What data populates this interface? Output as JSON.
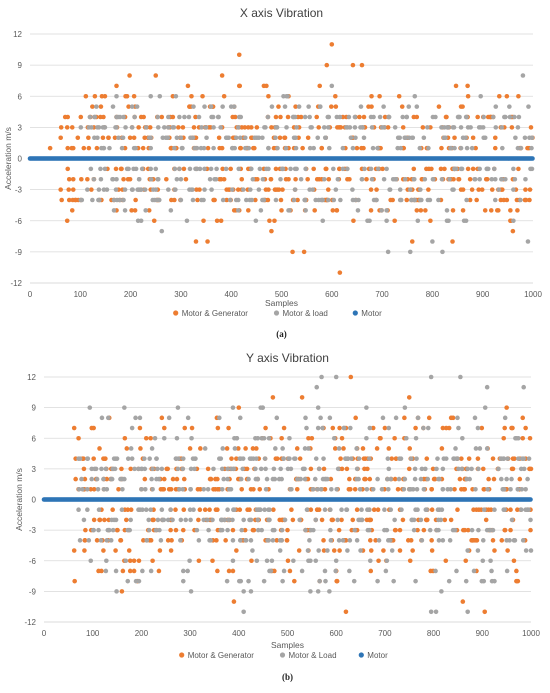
{
  "colors": {
    "motor_generator": "#ED7D31",
    "motor_load": "#A5A5A5",
    "motor": "#2E75B6",
    "grid": "#D9D9D9",
    "text": "#595959"
  },
  "chart_data": [
    {
      "type": "scatter",
      "title": "X axis Vibration",
      "xlabel": "Samples",
      "ylabel": "Acceleration m/s",
      "xlim": [
        0,
        1000
      ],
      "ylim": [
        -12,
        12
      ],
      "x_ticks": [
        "0",
        "100",
        "200",
        "300",
        "400",
        "500",
        "600",
        "700",
        "800",
        "900",
        "1000"
      ],
      "y_ticks": [
        "12",
        "9",
        "6",
        "3",
        "0",
        "-3",
        "-6",
        "-9",
        "-12"
      ],
      "legend": [
        "Motor & Generator",
        "Motor & load",
        "Motor"
      ],
      "legend_position": "bottom",
      "grid": "horizontal",
      "caption": "(a)",
      "series": [
        {
          "name": "Motor & Generator",
          "color_key": "motor_generator",
          "x_range": [
            60,
            1000
          ],
          "y_range": [
            -6,
            7
          ],
          "n_points": 520,
          "notable_points": [
            [
              40,
              1
            ],
            [
              198,
              8
            ],
            [
              250,
              8
            ],
            [
              382,
              8
            ],
            [
              416,
              10
            ],
            [
              600,
              11
            ],
            [
              616,
              -11
            ],
            [
              545,
              -9
            ],
            [
              642,
              9
            ],
            [
              660,
              9
            ],
            [
              590,
              9
            ],
            [
              330,
              -8
            ],
            [
              353,
              -8
            ],
            [
              480,
              -7
            ],
            [
              522,
              -9
            ],
            [
              760,
              -8
            ],
            [
              840,
              -8
            ],
            [
              960,
              -7
            ]
          ]
        },
        {
          "name": "Motor & load",
          "color_key": "motor_load",
          "x_range": [
            100,
            1000
          ],
          "y_range": [
            -6,
            6
          ],
          "n_points": 470,
          "notable_points": [
            [
              258,
              6
            ],
            [
              290,
              6
            ],
            [
              600,
              7
            ],
            [
              712,
              -9
            ],
            [
              756,
              -9
            ],
            [
              800,
              -8
            ],
            [
              820,
              -9
            ],
            [
              980,
              8
            ],
            [
              990,
              -8
            ],
            [
              262,
              -7
            ]
          ]
        },
        {
          "name": "Motor",
          "color_key": "motor",
          "x_range": [
            0,
            1000
          ],
          "y_value": 0,
          "n_points": 1000
        }
      ]
    },
    {
      "type": "scatter",
      "title": "Y axis Vibration",
      "xlabel": "Samples",
      "ylabel": "Acceleration m/s",
      "xlim": [
        0,
        1000
      ],
      "ylim": [
        -12,
        12
      ],
      "x_ticks": [
        "0",
        "100",
        "200",
        "300",
        "400",
        "500",
        "600",
        "700",
        "800",
        "900",
        "1000"
      ],
      "y_ticks": [
        "12",
        "9",
        "6",
        "3",
        "0",
        "-3",
        "-6",
        "-9",
        "-12"
      ],
      "legend": [
        "Motor & Generator",
        "Motor & Load",
        "Motor"
      ],
      "legend_position": "bottom",
      "grid": "horizontal",
      "caption": "(b)",
      "series": [
        {
          "name": "Motor & Generator",
          "color_key": "motor_generator",
          "x_range": [
            60,
            1000
          ],
          "y_range": [
            -8,
            8
          ],
          "n_points": 540,
          "notable_points": [
            [
              160,
              -9
            ],
            [
              390,
              -10
            ],
            [
              620,
              -11
            ],
            [
              630,
              12
            ],
            [
              905,
              -11
            ],
            [
              400,
              9
            ],
            [
              470,
              10
            ],
            [
              530,
              10
            ],
            [
              750,
              10
            ],
            [
              860,
              -10
            ],
            [
              950,
              9
            ]
          ]
        },
        {
          "name": "Motor & Load",
          "color_key": "motor_load",
          "x_range": [
            70,
            1000
          ],
          "y_range": [
            -9,
            9
          ],
          "n_points": 560,
          "notable_points": [
            [
              570,
              12
            ],
            [
              600,
              12
            ],
            [
              795,
              12
            ],
            [
              855,
              12
            ],
            [
              410,
              -11
            ],
            [
              795,
              -11
            ],
            [
              805,
              -11
            ],
            [
              560,
              11
            ],
            [
              910,
              11
            ],
            [
              985,
              11
            ],
            [
              870,
              -11
            ]
          ]
        },
        {
          "name": "Motor",
          "color_key": "motor",
          "x_range": [
            0,
            1000
          ],
          "y_value": 0,
          "n_points": 1000
        }
      ]
    }
  ]
}
